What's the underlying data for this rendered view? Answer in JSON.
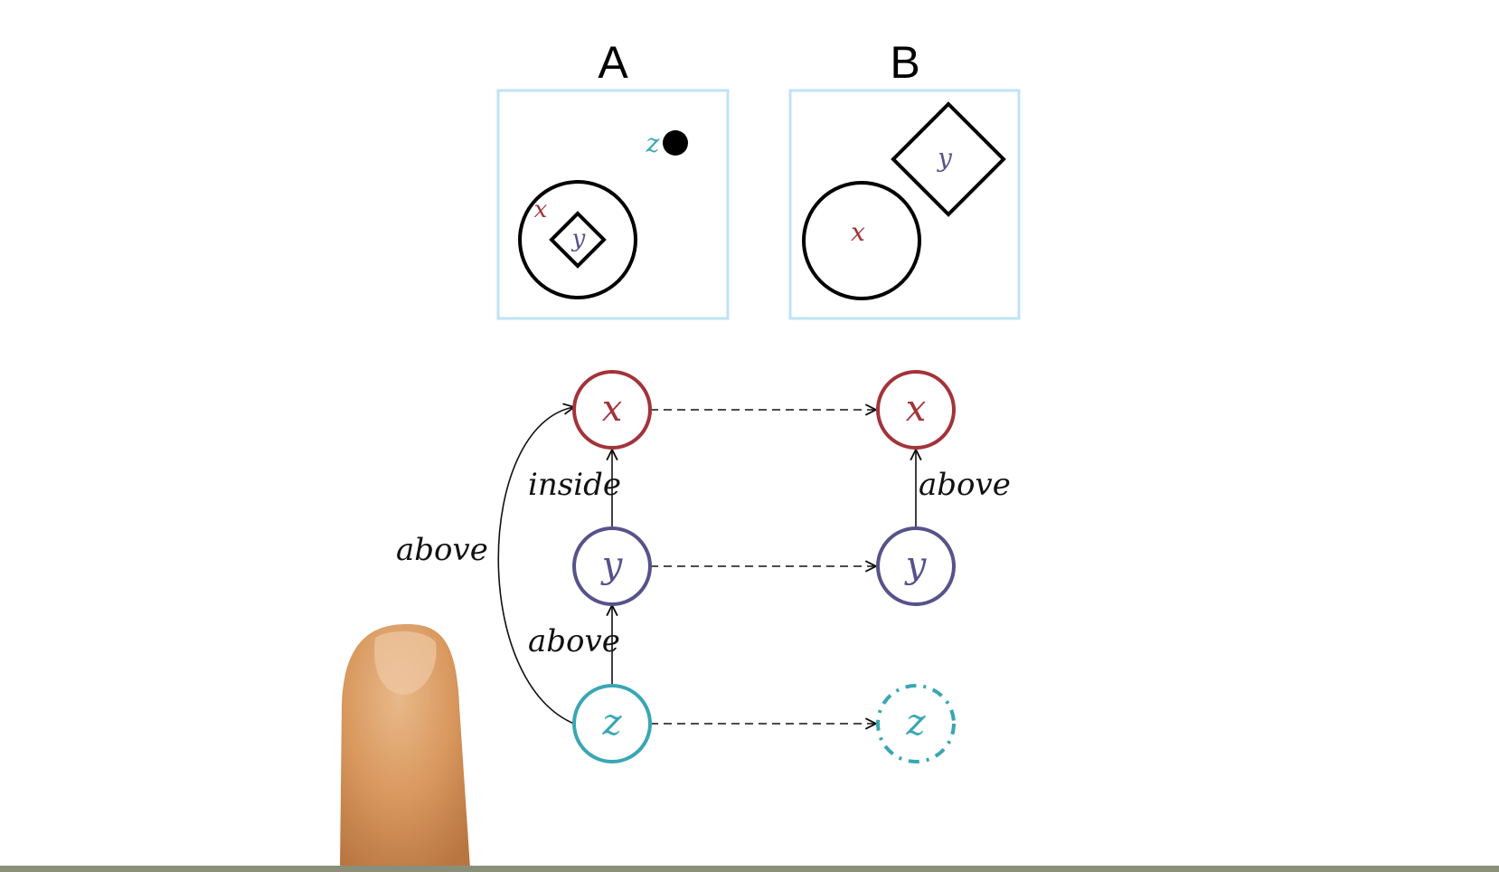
{
  "panels": {
    "a": {
      "title": "A",
      "labels": {
        "x": "x",
        "y": "y",
        "z": "z"
      }
    },
    "b": {
      "title": "B",
      "labels": {
        "x": "x",
        "y": "y"
      }
    }
  },
  "graph": {
    "left": {
      "nodes": {
        "x": "x",
        "y": "y",
        "z": "z"
      },
      "edges": {
        "y_to_x": "inside",
        "z_to_y": "above",
        "z_to_x": "above"
      }
    },
    "right": {
      "nodes": {
        "x": "x",
        "y": "y",
        "z": "z"
      },
      "edges": {
        "y_to_x": "above"
      }
    }
  },
  "colors": {
    "x": "#a3333a",
    "y": "#57528a",
    "z": "#3aa6b4",
    "panel_border": "#bfe3f5",
    "ink": "#000000"
  }
}
